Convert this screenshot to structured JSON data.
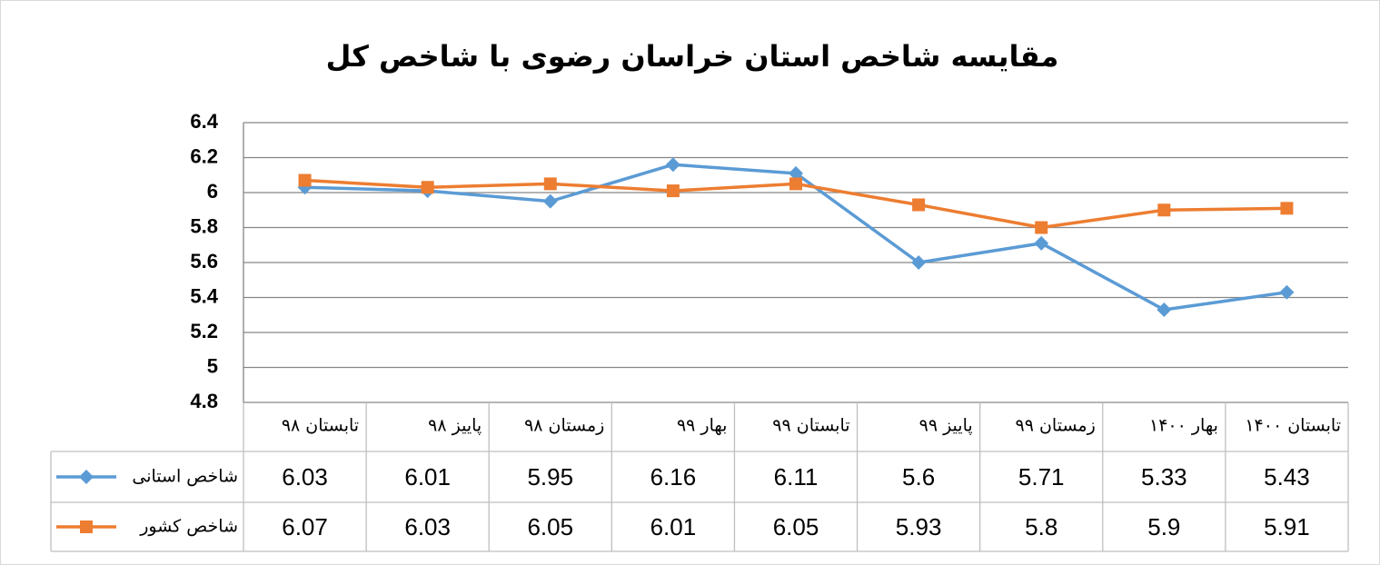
{
  "chart_data": {
    "type": "line",
    "title": "مقایسه شاخص استان خراسان رضوی با شاخص کل",
    "categories": [
      "تابستان ۹۸",
      "پاییز ۹۸",
      "زمستان ۹۸",
      "بهار ۹۹",
      "تابستان ۹۹",
      "پاییز ۹۹",
      "زمستان ۹۹",
      "بهار ۱۴۰۰",
      "تابستان ۱۴۰۰"
    ],
    "series": [
      {
        "name": "شاخص استانی",
        "color": "#5b9bd5",
        "marker": "diamond",
        "values": [
          6.03,
          6.01,
          5.95,
          6.16,
          6.11,
          5.6,
          5.71,
          5.33,
          5.43
        ]
      },
      {
        "name": "شاخص کشور",
        "color": "#ed7d31",
        "marker": "square",
        "values": [
          6.07,
          6.03,
          6.05,
          6.01,
          6.05,
          5.93,
          5.8,
          5.9,
          5.91
        ]
      }
    ],
    "ylim": [
      4.8,
      6.4
    ],
    "yticks": [
      4.8,
      5,
      5.2,
      5.4,
      5.6,
      5.8,
      6,
      6.2,
      6.4
    ],
    "grid": true,
    "data_table": true
  }
}
